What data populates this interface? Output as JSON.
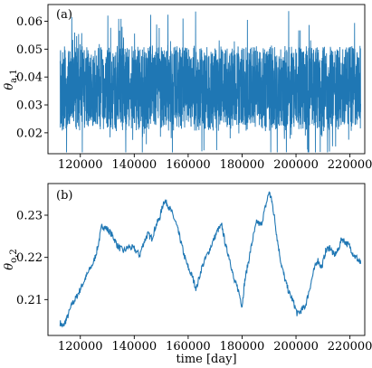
{
  "chart_data": [
    {
      "type": "line",
      "panel_label": "(a)",
      "ylabel_base": "θ",
      "ylabel_sub": "a,1",
      "xlabel": "",
      "color": "#1f77b4",
      "xlim": [
        108000,
        225500
      ],
      "ylim": [
        0.0125,
        0.066
      ],
      "xticks": [
        120000,
        140000,
        160000,
        180000,
        200000,
        220000
      ],
      "xtick_labels": [
        "120000",
        "140000",
        "160000",
        "180000",
        "200000",
        "220000"
      ],
      "yticks": [
        0.02,
        0.03,
        0.04,
        0.05,
        0.06
      ],
      "ytick_labels": [
        "0.02",
        "0.03",
        "0.04",
        "0.05",
        "0.06"
      ],
      "series": [
        {
          "x_range": [
            112500,
            224000
          ],
          "mean": 0.036,
          "band": [
            0.022,
            0.052
          ],
          "extremes": [
            0.013,
            0.065
          ]
        }
      ]
    },
    {
      "type": "line",
      "panel_label": "(b)",
      "ylabel_base": "θ",
      "ylabel_sub": "o,2",
      "xlabel": "time [day]",
      "color": "#1f77b4",
      "xlim": [
        108000,
        225500
      ],
      "ylim": [
        0.2015,
        0.2375
      ],
      "xticks": [
        120000,
        140000,
        160000,
        180000,
        200000,
        220000
      ],
      "xtick_labels": [
        "120000",
        "140000",
        "160000",
        "180000",
        "200000",
        "220000"
      ],
      "yticks": [
        0.21,
        0.22,
        0.23
      ],
      "ytick_labels": [
        "0.21",
        "0.22",
        "0.23"
      ],
      "series": [
        {
          "x": [
            112500,
            113500,
            115000,
            117000,
            118500,
            120000,
            121500,
            123000,
            125000,
            126500,
            128000,
            129500,
            131000,
            132500,
            134000,
            136000,
            138000,
            140000,
            142000,
            143500,
            145000,
            146500,
            148000,
            149500,
            151000,
            152500,
            154000,
            155500,
            157000,
            158500,
            160000,
            161500,
            163000,
            165000,
            167000,
            169000,
            171000,
            172500,
            174000,
            175500,
            177000,
            178500,
            180000,
            181000,
            182500,
            184000,
            185500,
            187000,
            188500,
            190000,
            191000,
            192000,
            193000,
            194500,
            196000,
            197500,
            199000,
            200500,
            202000,
            203500,
            205000,
            206500,
            208000,
            209500,
            211000,
            212500,
            214000,
            215500,
            217000,
            218500,
            220000,
            221500,
            223000,
            224000
          ],
          "y": [
            0.2045,
            0.2035,
            0.2055,
            0.209,
            0.2105,
            0.2125,
            0.2145,
            0.2165,
            0.219,
            0.2225,
            0.2275,
            0.227,
            0.226,
            0.2245,
            0.2225,
            0.2215,
            0.2225,
            0.222,
            0.2205,
            0.2235,
            0.2255,
            0.2245,
            0.2275,
            0.2295,
            0.2335,
            0.2325,
            0.2305,
            0.228,
            0.2245,
            0.2205,
            0.2175,
            0.2155,
            0.2125,
            0.2175,
            0.2205,
            0.2235,
            0.2265,
            0.2275,
            0.2225,
            0.2195,
            0.2145,
            0.2125,
            0.2085,
            0.2145,
            0.2195,
            0.2245,
            0.2285,
            0.2275,
            0.2315,
            0.2355,
            0.2335,
            0.2295,
            0.2245,
            0.2185,
            0.2145,
            0.2115,
            0.2095,
            0.2065,
            0.2075,
            0.2085,
            0.2125,
            0.2165,
            0.2195,
            0.2175,
            0.2215,
            0.2225,
            0.2205,
            0.2215,
            0.2245,
            0.2235,
            0.2225,
            0.2205,
            0.2195,
            0.2185
          ]
        }
      ]
    }
  ]
}
